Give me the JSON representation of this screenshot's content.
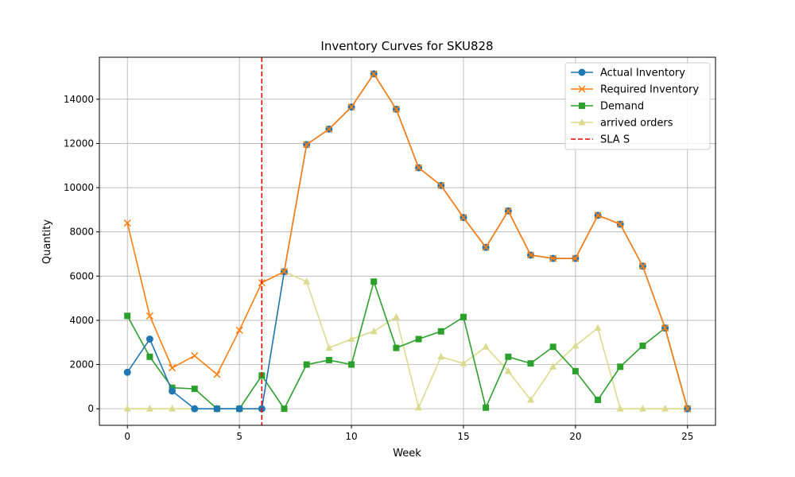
{
  "chart_data": {
    "type": "line",
    "title": "Inventory Curves for SKU828",
    "xlabel": "Week",
    "ylabel": "Quantity",
    "xlim": [
      -1.25,
      26.25
    ],
    "ylim": [
      -750,
      15900
    ],
    "grid": true,
    "legend_position": "top-right",
    "x": [
      0,
      1,
      2,
      3,
      4,
      5,
      6,
      7,
      8,
      9,
      10,
      11,
      12,
      13,
      14,
      15,
      16,
      17,
      18,
      19,
      20,
      21,
      22,
      23,
      24,
      25
    ],
    "x_ticks": [
      0,
      5,
      10,
      15,
      20,
      25
    ],
    "y_ticks": [
      0,
      2000,
      4000,
      6000,
      8000,
      10000,
      12000,
      14000
    ],
    "series": [
      {
        "name": "Actual Inventory",
        "color": "#1f77b4",
        "marker": "circle",
        "values": [
          1650,
          3150,
          800,
          0,
          0,
          0,
          0,
          6200,
          11950,
          12650,
          13650,
          15150,
          13550,
          10900,
          10100,
          8650,
          7300,
          8950,
          6950,
          6800,
          6800,
          8750,
          8350,
          6450,
          3650,
          0
        ]
      },
      {
        "name": "Required Inventory",
        "color": "#ff7f0e",
        "marker": "x",
        "values": [
          8400,
          4200,
          1850,
          2400,
          1550,
          3550,
          5700,
          6200,
          11950,
          12650,
          13650,
          15150,
          13550,
          10900,
          10100,
          8650,
          7300,
          8950,
          6950,
          6800,
          6800,
          8750,
          8350,
          6450,
          3650,
          0
        ]
      },
      {
        "name": "Demand",
        "color": "#2ca02c",
        "marker": "square",
        "values": [
          4200,
          2350,
          950,
          900,
          0,
          0,
          1500,
          0,
          2000,
          2200,
          2000,
          5750,
          2750,
          3150,
          3500,
          4150,
          50,
          2350,
          2050,
          2800,
          1700,
          400,
          1900,
          2850,
          3650,
          0
        ]
      },
      {
        "name": "arrived orders",
        "color": "#dbdb8d",
        "marker": "triangle",
        "values": [
          0,
          0,
          0,
          0,
          0,
          0,
          0,
          6200,
          5750,
          2750,
          3150,
          3500,
          4150,
          50,
          2350,
          2050,
          2800,
          1700,
          400,
          1900,
          2850,
          3650,
          0,
          0,
          0,
          0
        ]
      }
    ],
    "vline": {
      "name": "SLA S",
      "x": 6,
      "color": "#ff0000",
      "style": "dashed"
    }
  }
}
